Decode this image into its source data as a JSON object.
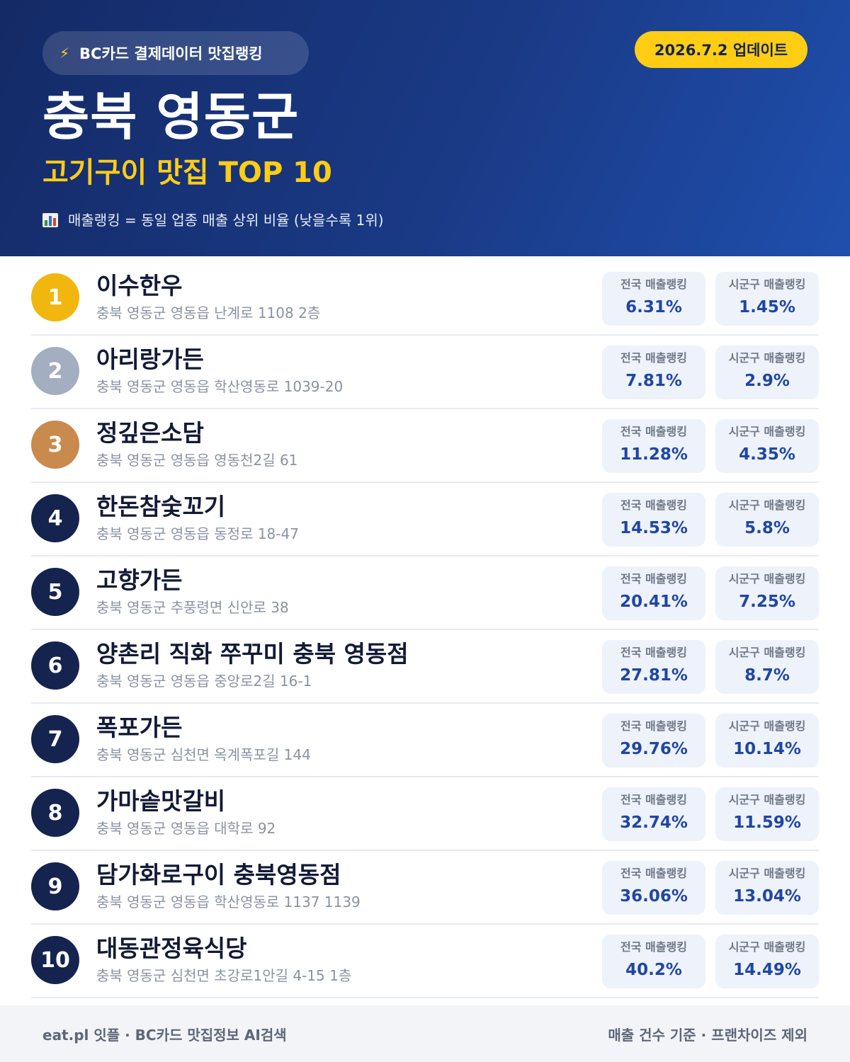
{
  "header": {
    "source_label": "BC카드 결제데이터 맛집랭킹",
    "source_icon": "lightning-bolt-icon",
    "update_label": "2026.7.2 업데이트",
    "region": "충북 영동군",
    "subtitle": "고기구이 맛집 TOP 10",
    "note_icon": "bar-chart-icon",
    "note": "매출랭킹 = 동일 업종 매출 상위 비율 (낮을수록 1위)"
  },
  "colors": {
    "header_bg": "#1a3a86",
    "accent_yellow": "#ffcd14",
    "rank_gold": "#f1b70f",
    "rank_silver": "#a3aec1",
    "rank_bronze": "#c98a4d",
    "rank_default": "#15234f",
    "value_blue": "#1f46a5"
  },
  "labels": {
    "national": "전국 매출랭킹",
    "local": "시군구 매출랭킹"
  },
  "restaurants": [
    {
      "rank": "1",
      "name": "이수한우",
      "address": "충북 영동군 영동읍 난계로 1108 2층",
      "national": "6.31%",
      "local": "1.45%"
    },
    {
      "rank": "2",
      "name": "아리랑가든",
      "address": "충북 영동군 영동읍 학산영동로 1039-20",
      "national": "7.81%",
      "local": "2.9%"
    },
    {
      "rank": "3",
      "name": "정깊은소담",
      "address": "충북 영동군 영동읍 영동천2길 61",
      "national": "11.28%",
      "local": "4.35%"
    },
    {
      "rank": "4",
      "name": "한돈참숯꼬기",
      "address": "충북 영동군 영동읍 동정로 18-47",
      "national": "14.53%",
      "local": "5.8%"
    },
    {
      "rank": "5",
      "name": "고향가든",
      "address": "충북 영동군 추풍령면 신안로 38",
      "national": "20.41%",
      "local": "7.25%"
    },
    {
      "rank": "6",
      "name": "양촌리 직화 쭈꾸미 충북 영동점",
      "address": "충북 영동군 영동읍 중앙로2길 16-1",
      "national": "27.81%",
      "local": "8.7%"
    },
    {
      "rank": "7",
      "name": "폭포가든",
      "address": "충북 영동군 심천면 옥계폭포길 144",
      "national": "29.76%",
      "local": "10.14%"
    },
    {
      "rank": "8",
      "name": "가마솥맛갈비",
      "address": "충북 영동군 영동읍 대학로 92",
      "national": "32.74%",
      "local": "11.59%"
    },
    {
      "rank": "9",
      "name": "담가화로구이 충북영동점",
      "address": "충북 영동군 영동읍 학산영동로 1137 1139",
      "national": "36.06%",
      "local": "13.04%"
    },
    {
      "rank": "10",
      "name": "대동관정육식당",
      "address": "충북 영동군 심천면 초강로1안길 4-15 1층",
      "national": "40.2%",
      "local": "14.49%"
    }
  ],
  "footer": {
    "left": "eat.pl 잇플 · BC카드 맛집정보 AI검색",
    "right": "매출 건수 기준 · 프랜차이즈 제외"
  }
}
